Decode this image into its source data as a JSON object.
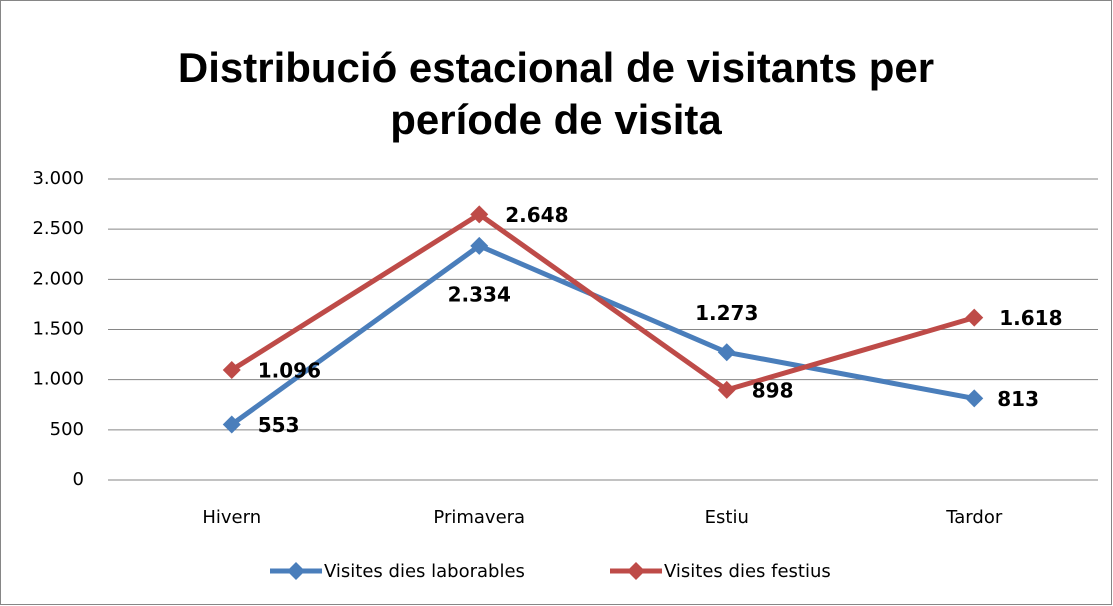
{
  "chart_data": {
    "type": "line",
    "title": "Distribució estacional de visitants per període de visita",
    "categories": [
      "Hivern",
      "Primavera",
      "Estiu",
      "Tardor"
    ],
    "series": [
      {
        "name": "Visites dies laborables",
        "color": "#4a7ebb",
        "label_color": "#1f74bf",
        "values": [
          553,
          2334,
          1273,
          813
        ],
        "value_labels": [
          "553",
          "2.334",
          "1.273",
          "813"
        ]
      },
      {
        "name": "Visites dies festius",
        "color": "#be4b48",
        "label_color": "#c00000",
        "values": [
          1096,
          2648,
          898,
          1618
        ],
        "value_labels": [
          "1.096",
          "2.648",
          "898",
          "1.618"
        ]
      }
    ],
    "ylim": [
      0,
      3000
    ],
    "yticks": [
      0,
      500,
      {
        "value": 1000,
        "label": "1.000"
      },
      {
        "value": 1500,
        "label": "1.500"
      },
      {
        "value": 2000,
        "label": "2.000"
      },
      {
        "value": 2500,
        "label": "2.500"
      },
      {
        "value": 3000,
        "label": "3.000"
      }
    ],
    "grid": true,
    "legend": "bottom"
  }
}
